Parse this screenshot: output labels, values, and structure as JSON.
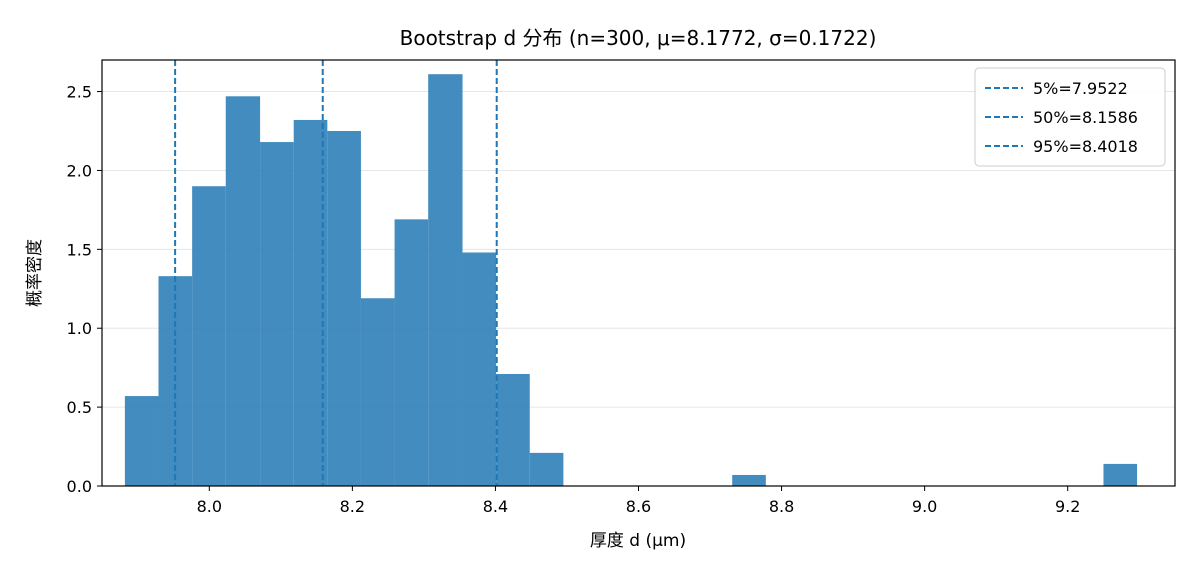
{
  "chart_data": {
    "type": "bar",
    "title": "Bootstrap d 分布 (n=300, μ=8.1772, σ=0.1722)",
    "xlabel": "厚度 d (μm)",
    "ylabel": "概率密度",
    "xlim": [
      7.85,
      9.35
    ],
    "ylim": [
      0,
      2.7
    ],
    "x_ticks": [
      8.0,
      8.2,
      8.4,
      8.6,
      8.8,
      9.0,
      9.2
    ],
    "x_tick_labels": [
      "8.0",
      "8.2",
      "8.4",
      "8.6",
      "8.8",
      "9.0",
      "9.2"
    ],
    "y_ticks": [
      0.0,
      0.5,
      1.0,
      1.5,
      2.0,
      2.5
    ],
    "y_tick_labels": [
      "0.0",
      "0.5",
      "1.0",
      "1.5",
      "2.0",
      "2.5"
    ],
    "grid": "horizontal",
    "bar_color": "#2f7fb8",
    "bins": [
      {
        "x0": 7.882,
        "x1": 7.929,
        "value": 0.57
      },
      {
        "x0": 7.929,
        "x1": 7.976,
        "value": 1.33
      },
      {
        "x0": 7.976,
        "x1": 8.023,
        "value": 1.9
      },
      {
        "x0": 8.023,
        "x1": 8.071,
        "value": 2.47
      },
      {
        "x0": 8.071,
        "x1": 8.118,
        "value": 2.18
      },
      {
        "x0": 8.118,
        "x1": 8.165,
        "value": 2.32
      },
      {
        "x0": 8.165,
        "x1": 8.212,
        "value": 2.25
      },
      {
        "x0": 8.212,
        "x1": 8.259,
        "value": 1.19
      },
      {
        "x0": 8.259,
        "x1": 8.306,
        "value": 1.69
      },
      {
        "x0": 8.306,
        "x1": 8.354,
        "value": 2.61
      },
      {
        "x0": 8.354,
        "x1": 8.401,
        "value": 1.48
      },
      {
        "x0": 8.401,
        "x1": 8.448,
        "value": 0.71
      },
      {
        "x0": 8.448,
        "x1": 8.495,
        "value": 0.21
      },
      {
        "x0": 8.495,
        "x1": 8.542,
        "value": 0.0
      },
      {
        "x0": 8.542,
        "x1": 8.589,
        "value": 0.0
      },
      {
        "x0": 8.589,
        "x1": 8.637,
        "value": 0.0
      },
      {
        "x0": 8.637,
        "x1": 8.684,
        "value": 0.0
      },
      {
        "x0": 8.684,
        "x1": 8.731,
        "value": 0.0
      },
      {
        "x0": 8.731,
        "x1": 8.778,
        "value": 0.07
      },
      {
        "x0": 8.778,
        "x1": 8.825,
        "value": 0.0
      },
      {
        "x0": 8.825,
        "x1": 8.872,
        "value": 0.0
      },
      {
        "x0": 8.872,
        "x1": 8.92,
        "value": 0.0
      },
      {
        "x0": 8.92,
        "x1": 8.967,
        "value": 0.0
      },
      {
        "x0": 8.967,
        "x1": 9.014,
        "value": 0.0
      },
      {
        "x0": 9.014,
        "x1": 9.061,
        "value": 0.0
      },
      {
        "x0": 9.061,
        "x1": 9.108,
        "value": 0.0
      },
      {
        "x0": 9.108,
        "x1": 9.155,
        "value": 0.0
      },
      {
        "x0": 9.155,
        "x1": 9.203,
        "value": 0.0
      },
      {
        "x0": 9.203,
        "x1": 9.25,
        "value": 0.0
      },
      {
        "x0": 9.25,
        "x1": 9.297,
        "value": 0.14
      }
    ],
    "percentile_lines": [
      {
        "label": "5%=7.9522",
        "x": 7.9522,
        "color": "#1f77b4"
      },
      {
        "label": "50%=8.1586",
        "x": 8.1586,
        "color": "#1f77b4"
      },
      {
        "label": "95%=8.4018",
        "x": 8.4018,
        "color": "#1f77b4"
      }
    ],
    "legend_position": "top-right"
  }
}
